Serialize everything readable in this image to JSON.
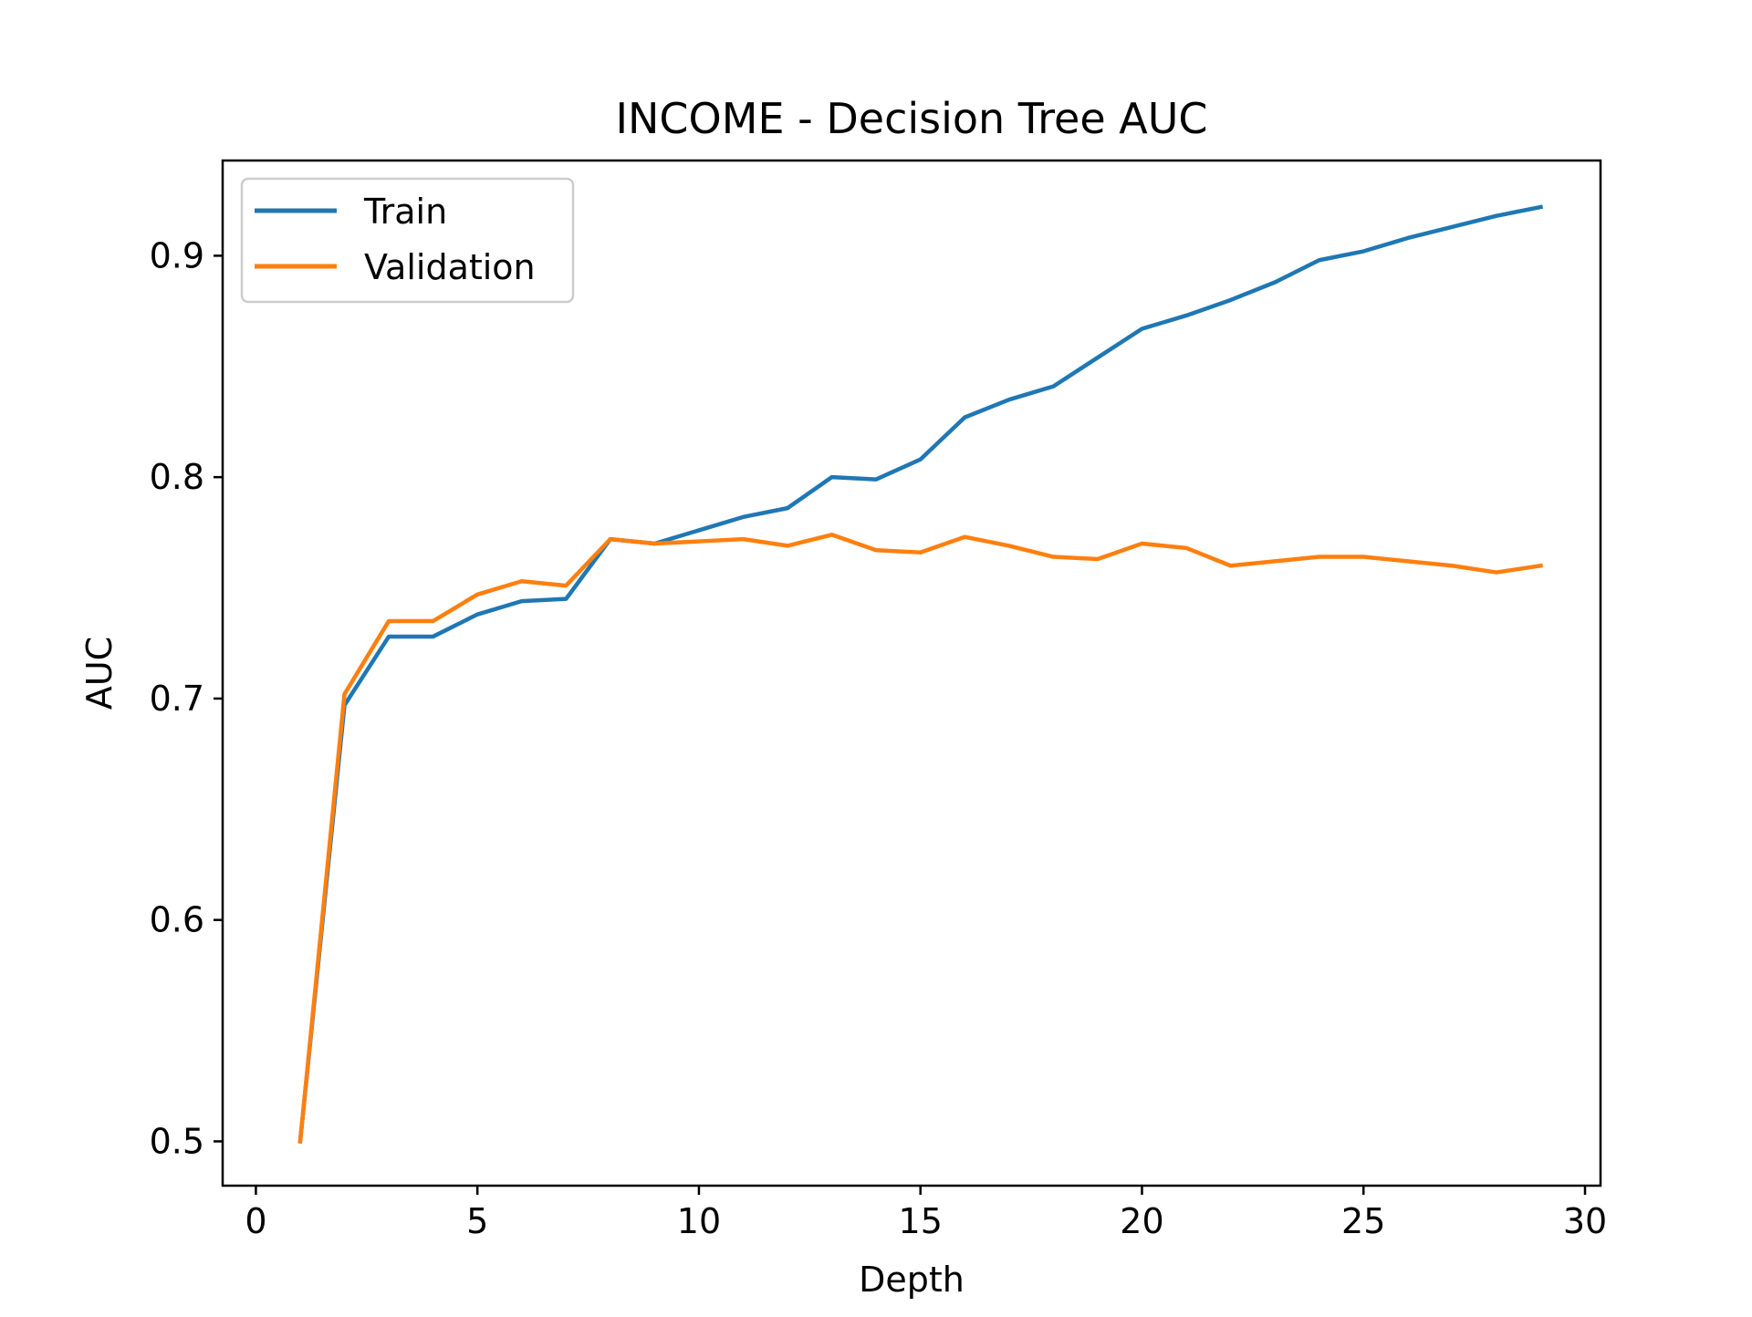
{
  "chart_data": {
    "type": "line",
    "title": "INCOME - Decision Tree AUC",
    "xlabel": "Depth",
    "ylabel": "AUC",
    "xlim": [
      -0.75,
      30.35
    ],
    "ylim": [
      0.48,
      0.943
    ],
    "x_ticks": [
      0,
      5,
      10,
      15,
      20,
      25,
      30
    ],
    "y_ticks": [
      0.5,
      0.6,
      0.7,
      0.8,
      0.9
    ],
    "x_tick_labels": [
      "0",
      "5",
      "10",
      "15",
      "20",
      "25",
      "30"
    ],
    "y_tick_labels": [
      "0.5",
      "0.6",
      "0.7",
      "0.8",
      "0.9"
    ],
    "grid": false,
    "legend_position": "upper-left",
    "x": [
      1,
      2,
      3,
      4,
      5,
      6,
      7,
      8,
      9,
      10,
      11,
      12,
      13,
      14,
      15,
      16,
      17,
      18,
      19,
      20,
      21,
      22,
      23,
      24,
      25,
      26,
      27,
      28,
      29
    ],
    "series": [
      {
        "name": "Train",
        "color": "#1f77b4",
        "values": [
          0.5,
          0.697,
          0.728,
          0.728,
          0.738,
          0.744,
          0.745,
          0.772,
          0.77,
          0.776,
          0.782,
          0.786,
          0.8,
          0.799,
          0.808,
          0.827,
          0.835,
          0.841,
          0.854,
          0.867,
          0.873,
          0.88,
          0.888,
          0.898,
          0.902,
          0.908,
          0.913,
          0.918,
          0.922
        ]
      },
      {
        "name": "Validation",
        "color": "#ff7f0e",
        "values": [
          0.5,
          0.702,
          0.735,
          0.735,
          0.747,
          0.753,
          0.751,
          0.772,
          0.77,
          0.771,
          0.772,
          0.769,
          0.774,
          0.767,
          0.766,
          0.773,
          0.769,
          0.764,
          0.763,
          0.77,
          0.768,
          0.76,
          0.762,
          0.764,
          0.764,
          0.762,
          0.76,
          0.757,
          0.76
        ]
      }
    ]
  }
}
